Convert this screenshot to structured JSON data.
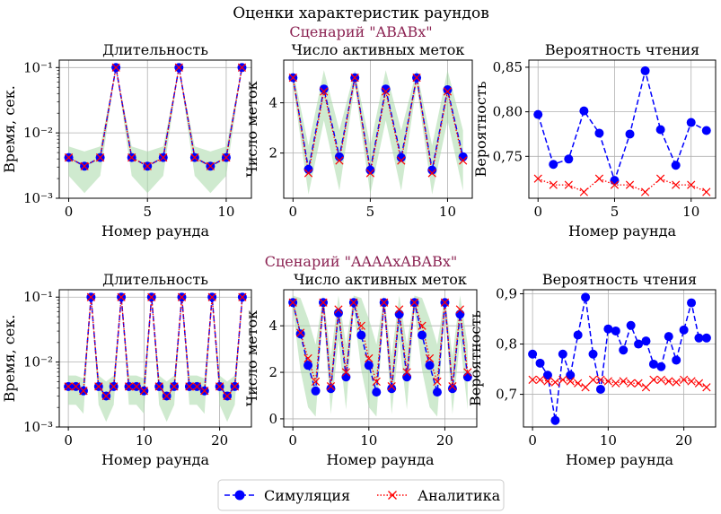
{
  "figure": {
    "title": "Оценки характеристик раундов",
    "scenarios": [
      "Сценарий \"ABABx\"",
      "Сценарий \"AAAAxABABx\""
    ],
    "legend": [
      {
        "label": "Симуляция",
        "color": "#0000ff",
        "style": "dashed",
        "marker": "circle"
      },
      {
        "label": "Аналитика",
        "color": "#ff0000",
        "style": "dotted",
        "marker": "x"
      }
    ],
    "band_color": "#a8d8a8"
  },
  "chart_data": [
    {
      "type": "line",
      "title": "Длительность",
      "xlabel": "Номер раунда",
      "ylabel": "Время, сек.",
      "yscale": "log",
      "xlim": [
        -0.6,
        11.6
      ],
      "ylim": [
        0.001,
        0.13
      ],
      "xticks": [
        0,
        5,
        10
      ],
      "yticks": [
        0.001,
        0.01,
        0.1
      ],
      "ytick_labels": [
        "10⁻³",
        "10⁻²",
        "10⁻¹"
      ],
      "x": [
        0,
        1,
        2,
        3,
        4,
        5,
        6,
        7,
        8,
        9,
        10,
        11
      ],
      "series": [
        {
          "name": "Симуляция",
          "values": [
            0.0042,
            0.0031,
            0.0042,
            0.1,
            0.0042,
            0.0031,
            0.0042,
            0.1,
            0.0042,
            0.0031,
            0.0042,
            0.1
          ]
        },
        {
          "name": "Аналитика",
          "values": [
            0.0042,
            0.0031,
            0.0042,
            0.1,
            0.0042,
            0.0031,
            0.0042,
            0.1,
            0.0042,
            0.0031,
            0.0042,
            0.1
          ]
        }
      ],
      "band": {
        "lower": [
          0.0022,
          0.0012,
          0.0022,
          0.1,
          0.0022,
          0.0012,
          0.0022,
          0.1,
          0.0022,
          0.0012,
          0.0022,
          0.1
        ],
        "upper": [
          0.0062,
          0.0052,
          0.0062,
          0.1,
          0.0062,
          0.0052,
          0.0062,
          0.1,
          0.0062,
          0.0052,
          0.0062,
          0.1
        ]
      }
    },
    {
      "type": "line",
      "title": "Число активных меток",
      "xlabel": "",
      "ylabel": "Число меток",
      "yscale": "linear",
      "xlim": [
        -0.6,
        11.6
      ],
      "ylim": [
        0.2,
        5.7
      ],
      "xticks": [
        0,
        5,
        10
      ],
      "yticks": [
        2,
        4
      ],
      "ytick_labels": [
        "2",
        "4"
      ],
      "x": [
        0,
        1,
        2,
        3,
        4,
        5,
        6,
        7,
        8,
        9,
        10,
        11
      ],
      "series": [
        {
          "name": "Симуляция",
          "values": [
            5.0,
            1.35,
            4.55,
            1.85,
            5.0,
            1.32,
            4.55,
            1.82,
            5.0,
            1.32,
            4.52,
            1.85
          ]
        },
        {
          "name": "Аналитика",
          "values": [
            5.0,
            1.2,
            4.45,
            1.7,
            5.0,
            1.2,
            4.45,
            1.7,
            5.0,
            1.2,
            4.45,
            1.7
          ]
        }
      ],
      "band": {
        "lower": [
          4.7,
          0.35,
          3.3,
          0.5,
          4.7,
          0.35,
          3.3,
          0.5,
          4.7,
          0.35,
          3.3,
          0.5
        ],
        "upper": [
          5.3,
          2.3,
          5.3,
          2.9,
          5.3,
          2.3,
          5.3,
          2.9,
          5.3,
          2.3,
          5.3,
          2.9
        ]
      }
    },
    {
      "type": "line",
      "title": "Вероятность чтения",
      "xlabel": "Номер раунда",
      "ylabel": "Вероятность",
      "yscale": "linear",
      "xlim": [
        -0.6,
        11.6
      ],
      "ylim": [
        0.703,
        0.858
      ],
      "xticks": [
        0,
        5,
        10
      ],
      "yticks": [
        0.75,
        0.8,
        0.85
      ],
      "ytick_labels": [
        "0,75",
        "0,80",
        "0,85"
      ],
      "x": [
        0,
        1,
        2,
        3,
        4,
        5,
        6,
        7,
        8,
        9,
        10,
        11
      ],
      "series": [
        {
          "name": "Симуляция",
          "values": [
            0.797,
            0.741,
            0.747,
            0.801,
            0.776,
            0.723,
            0.775,
            0.846,
            0.78,
            0.74,
            0.788,
            0.779
          ]
        },
        {
          "name": "Аналитика",
          "values": [
            0.725,
            0.718,
            0.718,
            0.71,
            0.725,
            0.718,
            0.718,
            0.71,
            0.725,
            0.718,
            0.718,
            0.71
          ]
        }
      ]
    },
    {
      "type": "line",
      "title": "Длительность",
      "xlabel": "Номер раунда",
      "ylabel": "Время, сек.",
      "yscale": "log",
      "xlim": [
        -1.2,
        24.2
      ],
      "ylim": [
        0.001,
        0.13
      ],
      "xticks": [
        0,
        10,
        20
      ],
      "yticks": [
        0.001,
        0.01,
        0.1
      ],
      "ytick_labels": [
        "10⁻³",
        "10⁻²",
        "10⁻¹"
      ],
      "x": [
        0,
        1,
        2,
        3,
        4,
        5,
        6,
        7,
        8,
        9,
        10,
        11,
        12,
        13,
        14,
        15,
        16,
        17,
        18,
        19,
        20,
        21,
        22,
        23
      ],
      "series": [
        {
          "name": "Симуляция",
          "values": [
            0.0042,
            0.0042,
            0.0036,
            0.1,
            0.0042,
            0.003,
            0.0042,
            0.1,
            0.0042,
            0.0042,
            0.0036,
            0.1,
            0.0042,
            0.003,
            0.0042,
            0.1,
            0.0042,
            0.0042,
            0.0036,
            0.1,
            0.0042,
            0.003,
            0.0042,
            0.1
          ]
        },
        {
          "name": "Аналитика",
          "values": [
            0.0042,
            0.0042,
            0.0036,
            0.1,
            0.0042,
            0.003,
            0.0042,
            0.1,
            0.0042,
            0.0042,
            0.0036,
            0.1,
            0.0042,
            0.003,
            0.0042,
            0.1,
            0.0042,
            0.0042,
            0.0036,
            0.1,
            0.0042,
            0.003,
            0.0042,
            0.1
          ]
        }
      ],
      "band": {
        "lower": [
          0.0022,
          0.0022,
          0.0016,
          0.1,
          0.0022,
          0.0012,
          0.0022,
          0.1,
          0.0022,
          0.0022,
          0.0016,
          0.1,
          0.0022,
          0.0012,
          0.0022,
          0.1,
          0.0022,
          0.0022,
          0.0016,
          0.1,
          0.0022,
          0.0012,
          0.0022,
          0.1
        ],
        "upper": [
          0.0062,
          0.0062,
          0.0056,
          0.1,
          0.0062,
          0.005,
          0.0062,
          0.1,
          0.0062,
          0.0062,
          0.0056,
          0.1,
          0.0062,
          0.005,
          0.0062,
          0.1,
          0.0062,
          0.0062,
          0.0056,
          0.1,
          0.0062,
          0.005,
          0.0062,
          0.1
        ]
      }
    },
    {
      "type": "line",
      "title": "Число активных меток",
      "xlabel": "Номер раунда",
      "ylabel": "Число меток",
      "yscale": "linear",
      "xlim": [
        -1.2,
        24.2
      ],
      "ylim": [
        -0.35,
        5.55
      ],
      "xticks": [
        0,
        10,
        20
      ],
      "yticks": [
        0,
        2,
        4
      ],
      "ytick_labels": [
        "0",
        "2",
        "4"
      ],
      "x": [
        0,
        1,
        2,
        3,
        4,
        5,
        6,
        7,
        8,
        9,
        10,
        11,
        12,
        13,
        14,
        15,
        16,
        17,
        18,
        19,
        20,
        21,
        22,
        23
      ],
      "series": [
        {
          "name": "Симуляция",
          "values": [
            5.0,
            3.65,
            2.3,
            1.2,
            5.0,
            1.3,
            4.55,
            1.8,
            5.0,
            3.6,
            2.3,
            1.15,
            5.0,
            1.3,
            4.5,
            1.8,
            5.0,
            3.6,
            2.3,
            1.15,
            5.0,
            1.3,
            4.5,
            1.8
          ]
        },
        {
          "name": "Аналитика",
          "values": [
            5.0,
            3.7,
            2.6,
            1.6,
            5.0,
            1.4,
            4.7,
            2.0,
            5.0,
            4.0,
            2.6,
            1.6,
            5.0,
            1.4,
            4.7,
            2.0,
            5.0,
            4.0,
            2.6,
            1.6,
            5.0,
            1.4,
            4.7,
            2.0
          ]
        }
      ],
      "band": {
        "lower": [
          4.7,
          2.1,
          0.5,
          0.1,
          4.7,
          0.2,
          3.4,
          0.4,
          4.7,
          2.1,
          0.5,
          0.1,
          4.7,
          0.2,
          3.4,
          0.4,
          4.7,
          2.1,
          0.5,
          0.1,
          4.7,
          0.2,
          3.4,
          0.4
        ],
        "upper": [
          5.3,
          5.2,
          4.3,
          3.2,
          5.3,
          2.7,
          5.3,
          3.2,
          5.3,
          5.2,
          4.3,
          3.2,
          5.3,
          2.7,
          5.3,
          3.2,
          5.3,
          5.2,
          4.3,
          3.2,
          5.3,
          2.7,
          5.3,
          3.2
        ]
      }
    },
    {
      "type": "line",
      "title": "Вероятность чтения",
      "xlabel": "Номер раунда",
      "ylabel": "Вероятность",
      "yscale": "linear",
      "xlim": [
        -1.2,
        24.2
      ],
      "ylim": [
        0.635,
        0.908
      ],
      "xticks": [
        0,
        10,
        20
      ],
      "yticks": [
        0.7,
        0.8,
        0.9
      ],
      "ytick_labels": [
        "0,7",
        "0,8",
        "0,9"
      ],
      "x": [
        0,
        1,
        2,
        3,
        4,
        5,
        6,
        7,
        8,
        9,
        10,
        11,
        12,
        13,
        14,
        15,
        16,
        17,
        18,
        19,
        20,
        21,
        22,
        23
      ],
      "series": [
        {
          "name": "Симуляция",
          "values": [
            0.78,
            0.762,
            0.738,
            0.648,
            0.78,
            0.738,
            0.818,
            0.893,
            0.78,
            0.71,
            0.83,
            0.826,
            0.788,
            0.837,
            0.8,
            0.806,
            0.76,
            0.755,
            0.815,
            0.768,
            0.828,
            0.882,
            0.812,
            0.812
          ]
        },
        {
          "name": "Аналитика",
          "values": [
            0.729,
            0.729,
            0.726,
            0.724,
            0.729,
            0.726,
            0.722,
            0.714,
            0.729,
            0.729,
            0.726,
            0.722,
            0.726,
            0.722,
            0.722,
            0.714,
            0.729,
            0.729,
            0.726,
            0.724,
            0.729,
            0.726,
            0.722,
            0.714
          ]
        }
      ]
    }
  ]
}
